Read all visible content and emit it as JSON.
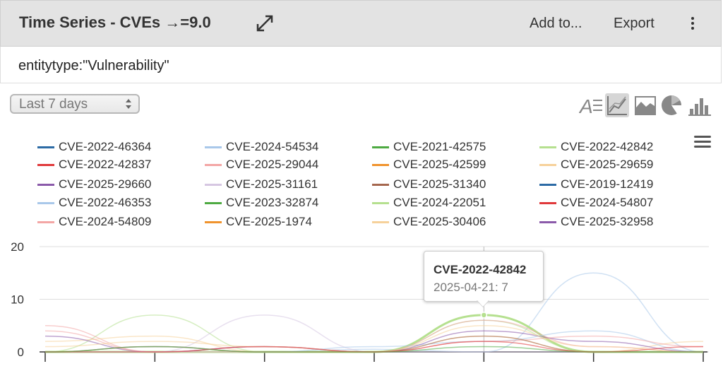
{
  "header": {
    "title": "Time Series - CVEs →=9.0",
    "add_to": "Add to...",
    "export": "Export"
  },
  "query": {
    "text": "entitytype:\"Vulnerability\""
  },
  "controls": {
    "time_range": "Last 7 days",
    "chart_types": [
      "text-view-icon",
      "line-chart-icon",
      "area-chart-icon",
      "pie-chart-icon",
      "bar-chart-icon"
    ],
    "active_chart_type": "line-chart-icon"
  },
  "legend": [
    {
      "name": "CVE-2022-46364",
      "color": "#2c6ba5"
    },
    {
      "name": "CVE-2024-54534",
      "color": "#a9c8ea"
    },
    {
      "name": "CVE-2021-42575",
      "color": "#4eaa42"
    },
    {
      "name": "CVE-2022-42842",
      "color": "#b5e08f"
    },
    {
      "name": "CVE-2022-42837",
      "color": "#e0393b"
    },
    {
      "name": "CVE-2025-29044",
      "color": "#f3a6a5"
    },
    {
      "name": "CVE-2025-42599",
      "color": "#f0932d"
    },
    {
      "name": "CVE-2025-29659",
      "color": "#f6d19a"
    },
    {
      "name": "CVE-2025-29660",
      "color": "#8b5aaa"
    },
    {
      "name": "CVE-2025-31161",
      "color": "#d6c7e2"
    },
    {
      "name": "CVE-2025-31340",
      "color": "#a5674e"
    },
    {
      "name": "CVE-2019-12419",
      "color": "#2c6ba5"
    },
    {
      "name": "CVE-2022-46353",
      "color": "#a9c8ea"
    },
    {
      "name": "CVE-2023-32874",
      "color": "#4eaa42"
    },
    {
      "name": "CVE-2024-22051",
      "color": "#b5e08f"
    },
    {
      "name": "CVE-2024-54807",
      "color": "#e0393b"
    },
    {
      "name": "CVE-2024-54809",
      "color": "#f3a6a5"
    },
    {
      "name": "CVE-2025-1974",
      "color": "#f0932d"
    },
    {
      "name": "CVE-2025-30406",
      "color": "#f6d19a"
    },
    {
      "name": "CVE-2025-32958",
      "color": "#8b5aaa"
    }
  ],
  "tooltip": {
    "series": "CVE-2022-42842",
    "value_text": "2025-04-21: 7"
  },
  "chart_data": {
    "type": "line",
    "ylim": [
      0,
      20
    ],
    "y_ticks": [
      "0",
      "10",
      "20"
    ],
    "x_points": 7,
    "series": [
      {
        "name": "CVE-2024-54534",
        "values": [
          0,
          1,
          0,
          0.5,
          0,
          15,
          0
        ]
      },
      {
        "name": "CVE-2022-42842",
        "values": [
          0,
          0,
          0,
          0,
          7,
          0,
          0
        ]
      },
      {
        "name": "CVE-2024-22051",
        "values": [
          0,
          7,
          0,
          0,
          6,
          0,
          0
        ]
      },
      {
        "name": "CVE-2025-31161",
        "values": [
          0,
          0,
          7,
          0,
          0,
          0,
          0
        ]
      },
      {
        "name": "CVE-2025-29044",
        "values": [
          5,
          0,
          1,
          0,
          6,
          1,
          0
        ]
      },
      {
        "name": "CVE-2025-29659",
        "values": [
          2,
          3,
          0,
          0,
          3,
          0,
          2
        ]
      },
      {
        "name": "CVE-2022-46353",
        "values": [
          0,
          0,
          0,
          1,
          2,
          4,
          0
        ]
      },
      {
        "name": "CVE-2025-29660",
        "values": [
          3,
          0,
          1,
          0,
          4,
          2,
          0
        ]
      },
      {
        "name": "CVE-2024-54809",
        "values": [
          4,
          0,
          0,
          0,
          2,
          3,
          1
        ]
      },
      {
        "name": "CVE-2025-30406",
        "values": [
          1,
          2,
          1,
          0,
          5,
          1,
          0
        ]
      },
      {
        "name": "CVE-2025-31340",
        "values": [
          0,
          1,
          0,
          0,
          3,
          0,
          0
        ]
      },
      {
        "name": "CVE-2024-54807",
        "values": [
          0,
          0,
          1,
          0,
          2,
          0,
          1
        ]
      },
      {
        "name": "CVE-2021-42575",
        "values": [
          0,
          1,
          0,
          0,
          1,
          0,
          0
        ]
      }
    ]
  },
  "colors": {
    "header_bg": "#e3e3e3",
    "grid": "#dddddd",
    "axis": "#333333"
  }
}
